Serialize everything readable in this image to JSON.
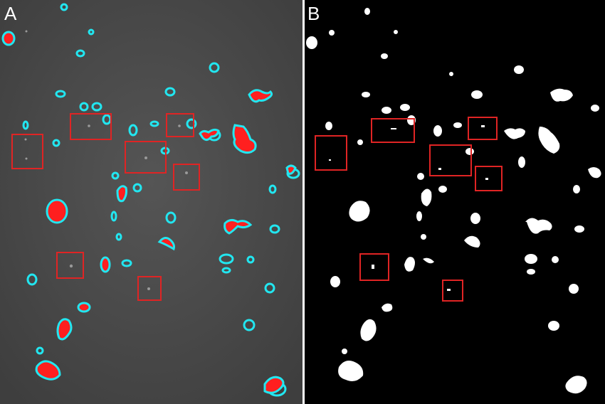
{
  "panels": [
    {
      "label": "A",
      "style": "grayscale micrograph with red filled regions and cyan contours"
    },
    {
      "label": "B",
      "style": "binary mask: white regions on black background"
    }
  ],
  "colors": {
    "panel_a_background": "#4a4a4a",
    "panel_b_background": "#000000",
    "blob_fill_a": "#ff1f1f",
    "contour_a": "#22e6f0",
    "blob_b": "#ffffff",
    "box_stroke": "#e02424"
  }
}
